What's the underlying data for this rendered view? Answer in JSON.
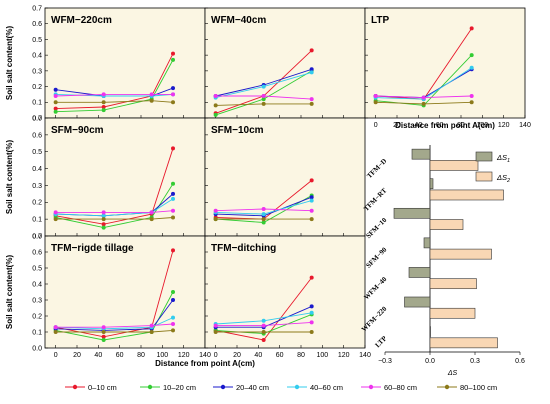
{
  "colors": {
    "panel_bg": "#FBF6E3",
    "bar_ds1": "#A3A88C",
    "bar_ds2": "#F9D7B4",
    "bar_edge": "#333333",
    "grid_line": "#000000"
  },
  "chart_data": [
    {
      "type": "line",
      "panel": "WFM-220cm",
      "title": "WFM−220cm",
      "xlim": [
        -10,
        140
      ],
      "ylim": [
        0,
        0.7
      ],
      "x": [
        0,
        45,
        90,
        110
      ],
      "series": [
        {
          "name": "0–10 cm",
          "color": "#E8192C",
          "values": [
            0.06,
            0.07,
            0.14,
            0.41
          ]
        },
        {
          "name": "10–20 cm",
          "color": "#33CC33",
          "values": [
            0.04,
            0.05,
            0.12,
            0.37
          ]
        },
        {
          "name": "20–40 cm",
          "color": "#1A1ACC",
          "values": [
            0.18,
            0.14,
            0.14,
            0.19
          ]
        },
        {
          "name": "40–60 cm",
          "color": "#33CCEE",
          "values": [
            0.15,
            0.14,
            0.14,
            0.15
          ]
        },
        {
          "name": "60–80 cm",
          "color": "#EE33EE",
          "values": [
            0.14,
            0.15,
            0.15,
            0.15
          ]
        },
        {
          "name": "80–100 cm",
          "color": "#8C7A1A",
          "values": [
            0.1,
            0.1,
            0.11,
            0.1
          ]
        }
      ]
    },
    {
      "type": "line",
      "panel": "WFM-40cm",
      "title": "WFM−40cm",
      "xlim": [
        -10,
        140
      ],
      "ylim": [
        0,
        0.7
      ],
      "x": [
        0,
        45,
        90
      ],
      "series": [
        {
          "name": "0–10 cm",
          "color": "#E8192C",
          "values": [
            0.03,
            0.14,
            0.43
          ]
        },
        {
          "name": "10–20 cm",
          "color": "#33CC33",
          "values": [
            0.02,
            0.12,
            0.3
          ]
        },
        {
          "name": "20–40 cm",
          "color": "#1A1ACC",
          "values": [
            0.14,
            0.21,
            0.31
          ]
        },
        {
          "name": "40–60 cm",
          "color": "#33CCEE",
          "values": [
            0.13,
            0.2,
            0.29
          ]
        },
        {
          "name": "60–80 cm",
          "color": "#EE33EE",
          "values": [
            0.14,
            0.14,
            0.12
          ]
        },
        {
          "name": "80–100 cm",
          "color": "#8C7A1A",
          "values": [
            0.08,
            0.09,
            0.09
          ]
        }
      ]
    },
    {
      "type": "line",
      "panel": "LTP",
      "title": "LTP",
      "xlim": [
        -10,
        140
      ],
      "ylim": [
        0,
        0.7
      ],
      "x": [
        0,
        45,
        90
      ],
      "series": [
        {
          "name": "0–10 cm",
          "color": "#E8192C",
          "values": [
            0.14,
            0.12,
            0.57
          ]
        },
        {
          "name": "10–20 cm",
          "color": "#33CC33",
          "values": [
            0.11,
            0.08,
            0.4
          ]
        },
        {
          "name": "20–40 cm",
          "color": "#1A1ACC",
          "values": [
            0.14,
            0.13,
            0.31
          ]
        },
        {
          "name": "40–60 cm",
          "color": "#33CCEE",
          "values": [
            0.13,
            0.12,
            0.32
          ]
        },
        {
          "name": "60–80 cm",
          "color": "#EE33EE",
          "values": [
            0.14,
            0.13,
            0.14
          ]
        },
        {
          "name": "80–100 cm",
          "color": "#8C7A1A",
          "values": [
            0.1,
            0.09,
            0.1
          ]
        }
      ]
    },
    {
      "type": "line",
      "panel": "SFM-90cm",
      "title": "SFM−90cm",
      "xlim": [
        -10,
        140
      ],
      "ylim": [
        0,
        0.7
      ],
      "x": [
        0,
        45,
        90,
        110
      ],
      "series": [
        {
          "name": "0–10 cm",
          "color": "#E8192C",
          "values": [
            0.12,
            0.07,
            0.13,
            0.52
          ]
        },
        {
          "name": "10–20 cm",
          "color": "#33CC33",
          "values": [
            0.11,
            0.05,
            0.11,
            0.31
          ]
        },
        {
          "name": "20–40 cm",
          "color": "#1A1ACC",
          "values": [
            0.13,
            0.12,
            0.14,
            0.25
          ]
        },
        {
          "name": "40–60 cm",
          "color": "#33CCEE",
          "values": [
            0.13,
            0.12,
            0.14,
            0.22
          ]
        },
        {
          "name": "60–80 cm",
          "color": "#EE33EE",
          "values": [
            0.14,
            0.14,
            0.14,
            0.15
          ]
        },
        {
          "name": "80–100 cm",
          "color": "#8C7A1A",
          "values": [
            0.1,
            0.1,
            0.1,
            0.11
          ]
        }
      ]
    },
    {
      "type": "line",
      "panel": "SFM-10cm",
      "title": "SFM−10cm",
      "xlim": [
        -10,
        140
      ],
      "ylim": [
        0,
        0.7
      ],
      "x": [
        0,
        45,
        90
      ],
      "series": [
        {
          "name": "0–10 cm",
          "color": "#E8192C",
          "values": [
            0.11,
            0.1,
            0.33
          ]
        },
        {
          "name": "10–20 cm",
          "color": "#33CC33",
          "values": [
            0.1,
            0.08,
            0.24
          ]
        },
        {
          "name": "20–40 cm",
          "color": "#1A1ACC",
          "values": [
            0.13,
            0.12,
            0.23
          ]
        },
        {
          "name": "40–60 cm",
          "color": "#33CCEE",
          "values": [
            0.14,
            0.13,
            0.21
          ]
        },
        {
          "name": "60–80 cm",
          "color": "#EE33EE",
          "values": [
            0.15,
            0.16,
            0.15
          ]
        },
        {
          "name": "80–100 cm",
          "color": "#8C7A1A",
          "values": [
            0.1,
            0.1,
            0.1
          ]
        }
      ]
    },
    {
      "type": "line",
      "panel": "TFM-rigde tillage",
      "title": "TFM−rigde tillage",
      "xlim": [
        -10,
        140
      ],
      "ylim": [
        0,
        0.7
      ],
      "x": [
        0,
        45,
        90,
        110
      ],
      "series": [
        {
          "name": "0–10 cm",
          "color": "#E8192C",
          "values": [
            0.13,
            0.07,
            0.13,
            0.61
          ]
        },
        {
          "name": "10–20 cm",
          "color": "#33CC33",
          "values": [
            0.11,
            0.05,
            0.1,
            0.35
          ]
        },
        {
          "name": "20–40 cm",
          "color": "#1A1ACC",
          "values": [
            0.12,
            0.11,
            0.12,
            0.3
          ]
        },
        {
          "name": "40–60 cm",
          "color": "#33CCEE",
          "values": [
            0.13,
            0.12,
            0.13,
            0.19
          ]
        },
        {
          "name": "60–80 cm",
          "color": "#EE33EE",
          "values": [
            0.13,
            0.13,
            0.14,
            0.15
          ]
        },
        {
          "name": "80–100 cm",
          "color": "#8C7A1A",
          "values": [
            0.1,
            0.1,
            0.1,
            0.11
          ]
        }
      ]
    },
    {
      "type": "line",
      "panel": "TFM-ditching",
      "title": "TFM−ditching",
      "xlim": [
        -10,
        140
      ],
      "ylim": [
        0,
        0.7
      ],
      "x": [
        0,
        45,
        90
      ],
      "series": [
        {
          "name": "0–10 cm",
          "color": "#E8192C",
          "values": [
            0.11,
            0.05,
            0.44
          ]
        },
        {
          "name": "10–20 cm",
          "color": "#33CC33",
          "values": [
            0.11,
            0.09,
            0.21
          ]
        },
        {
          "name": "20–40 cm",
          "color": "#1A1ACC",
          "values": [
            0.13,
            0.13,
            0.26
          ]
        },
        {
          "name": "40–60 cm",
          "color": "#33CCEE",
          "values": [
            0.15,
            0.17,
            0.22
          ]
        },
        {
          "name": "60–80 cm",
          "color": "#EE33EE",
          "values": [
            0.14,
            0.14,
            0.16
          ]
        },
        {
          "name": "80–100 cm",
          "color": "#8C7A1A",
          "values": [
            0.1,
            0.1,
            0.1
          ]
        }
      ]
    },
    {
      "type": "bar",
      "orientation": "horizontal",
      "panel": "delta-s",
      "categories": [
        "TFM−D",
        "TFM−RT",
        "SFM−10",
        "SFM−90",
        "WFM−40",
        "WFM−220",
        "LTP"
      ],
      "series": [
        {
          "name": "ΔS1",
          "values": [
            -0.12,
            0.02,
            -0.24,
            -0.04,
            -0.14,
            -0.17,
            0.0
          ]
        },
        {
          "name": "ΔS2",
          "values": [
            0.32,
            0.49,
            0.22,
            0.41,
            0.31,
            0.3,
            0.45
          ]
        }
      ],
      "xlim": [
        -0.3,
        0.6
      ],
      "xlabel": "ΔS"
    }
  ],
  "y_ticks": [
    "0.0",
    "0.1",
    "0.2",
    "0.3",
    "0.4",
    "0.5",
    "0.6",
    "0.7"
  ],
  "x_ticks": [
    "0",
    "20",
    "40",
    "60",
    "80",
    "100",
    "120",
    "140"
  ],
  "bar_x_ticks": [
    "−0.3",
    "0.0",
    "0.3",
    "0.6"
  ],
  "ylabel": "Soil salt content(%)",
  "xlabel": "Distance from  point A(cm)",
  "legend": [
    {
      "label": "0–10 cm",
      "color": "#E8192C"
    },
    {
      "label": "10–20 cm",
      "color": "#33CC33"
    },
    {
      "label": "20–40 cm",
      "color": "#1A1ACC"
    },
    {
      "label": "40–60 cm",
      "color": "#33CCEE"
    },
    {
      "label": "60–80 cm",
      "color": "#EE33EE"
    },
    {
      "label": "80–100 cm",
      "color": "#8C7A1A"
    }
  ],
  "bar_legend": [
    {
      "label": "ΔS",
      "sub": "1"
    },
    {
      "label": "ΔS",
      "sub": "2"
    }
  ]
}
